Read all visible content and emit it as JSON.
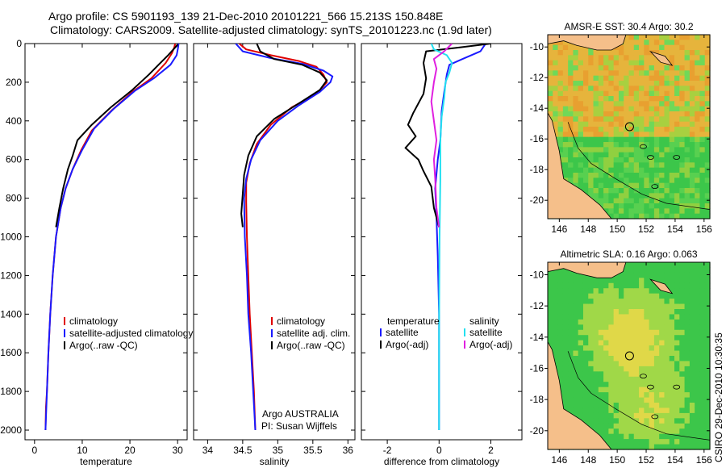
{
  "header": {
    "line1": "Argo profile: CS 5901193_139 21-Dec-2010 20101221_566 15.213S 150.848E",
    "line2": "Climatology: CARS2009. Satellite-adjusted climatology: synTS_20101223.nc (1.9d later)"
  },
  "colors": {
    "red": "#e00000",
    "blue": "#1a1aff",
    "black": "#000000",
    "cyan": "#22e0f0",
    "magenta": "#e020e0",
    "land": "#f5bf8a",
    "ocean_green": "#3cc64a",
    "ocean_yellow": "#e0d848",
    "ocean_orange": "#e8a030"
  },
  "chart_data": [
    {
      "type": "line",
      "id": "temperature",
      "xlabel": "temperature",
      "ylabel": "",
      "xlim": [
        -2,
        32
      ],
      "ylim": [
        2050,
        0
      ],
      "xticks": [
        0,
        10,
        20,
        30
      ],
      "yticks": [
        0,
        200,
        400,
        600,
        800,
        1000,
        1200,
        1400,
        1600,
        1800,
        2000
      ],
      "legend": [
        "climatology",
        "satellite-adjusted climatology",
        "Argo(..raw -QC)"
      ],
      "series": [
        {
          "name": "climatology",
          "color": "red",
          "points": [
            [
              29.5,
              0
            ],
            [
              29.3,
              20
            ],
            [
              28.8,
              50
            ],
            [
              27.5,
              100
            ],
            [
              24.5,
              180
            ],
            [
              20.5,
              250
            ],
            [
              16,
              350
            ],
            [
              12,
              450
            ],
            [
              9.8,
              550
            ],
            [
              8,
              650
            ],
            [
              6.5,
              750
            ],
            [
              5.5,
              850
            ],
            [
              4.5,
              1000
            ],
            [
              3.8,
              1200
            ],
            [
              3.3,
              1400
            ],
            [
              2.9,
              1600
            ],
            [
              2.6,
              1800
            ],
            [
              2.4,
              1880
            ],
            [
              2.3,
              2000
            ]
          ]
        },
        {
          "name": "satellite-adjusted climatology",
          "color": "blue",
          "points": [
            [
              30.2,
              0
            ],
            [
              30.1,
              20
            ],
            [
              29.8,
              60
            ],
            [
              28.5,
              110
            ],
            [
              25,
              180
            ],
            [
              21,
              245
            ],
            [
              16.5,
              340
            ],
            [
              12.5,
              440
            ],
            [
              10,
              550
            ],
            [
              8,
              650
            ],
            [
              6.5,
              750
            ],
            [
              5.5,
              850
            ],
            [
              4.5,
              1000
            ],
            [
              3.8,
              1200
            ],
            [
              3.3,
              1400
            ],
            [
              2.9,
              1600
            ],
            [
              2.6,
              1800
            ],
            [
              2.3,
              2000
            ]
          ]
        },
        {
          "name": "Argo(..raw -QC)",
          "color": "black",
          "points": [
            [
              30,
              5
            ],
            [
              29.5,
              20
            ],
            [
              28,
              60
            ],
            [
              26,
              110
            ],
            [
              24,
              160
            ],
            [
              20.5,
              240
            ],
            [
              16,
              330
            ],
            [
              12,
              420
            ],
            [
              9,
              500
            ],
            [
              8,
              580
            ],
            [
              7,
              650
            ],
            [
              6,
              750
            ],
            [
              5.2,
              850
            ],
            [
              4.5,
              950
            ]
          ]
        }
      ]
    },
    {
      "type": "line",
      "id": "salinity",
      "xlabel": "salinity",
      "xlim": [
        33.8,
        36.1
      ],
      "ylim": [
        2050,
        0
      ],
      "xticks": [
        34,
        34.5,
        35,
        35.5,
        36
      ],
      "legend": [
        "climatology",
        "satellite adj. clim.",
        "Argo(..raw -QC)"
      ],
      "annotation": [
        "Argo AUSTRALIA",
        "PI: Susan Wijffels"
      ],
      "series": [
        {
          "name": "climatology",
          "color": "red",
          "points": [
            [
              34.45,
              0
            ],
            [
              34.55,
              30
            ],
            [
              34.9,
              60
            ],
            [
              35.3,
              90
            ],
            [
              35.55,
              120
            ],
            [
              35.65,
              160
            ],
            [
              35.7,
              200
            ],
            [
              35.55,
              260
            ],
            [
              35.2,
              330
            ],
            [
              34.9,
              420
            ],
            [
              34.7,
              520
            ],
            [
              34.6,
              620
            ],
            [
              34.55,
              720
            ],
            [
              34.55,
              820
            ],
            [
              34.56,
              1000
            ],
            [
              34.58,
              1200
            ],
            [
              34.6,
              1400
            ],
            [
              34.63,
              1600
            ],
            [
              34.66,
              1800
            ],
            [
              34.68,
              2000
            ]
          ]
        },
        {
          "name": "satellite adj. clim.",
          "color": "blue",
          "points": [
            [
              34.4,
              0
            ],
            [
              34.5,
              40
            ],
            [
              34.9,
              75
            ],
            [
              35.35,
              105
            ],
            [
              35.65,
              140
            ],
            [
              35.78,
              170
            ],
            [
              35.75,
              200
            ],
            [
              35.6,
              250
            ],
            [
              35.3,
              320
            ],
            [
              35,
              400
            ],
            [
              34.75,
              500
            ],
            [
              34.62,
              600
            ],
            [
              34.55,
              700
            ],
            [
              34.52,
              800
            ],
            [
              34.53,
              1000
            ],
            [
              34.56,
              1200
            ],
            [
              34.58,
              1400
            ],
            [
              34.62,
              1600
            ],
            [
              34.65,
              1800
            ],
            [
              34.68,
              2000
            ]
          ]
        },
        {
          "name": "Argo(..raw -QC)",
          "color": "black",
          "points": [
            [
              34.7,
              0
            ],
            [
              34.75,
              40
            ],
            [
              34.95,
              80
            ],
            [
              35.35,
              110
            ],
            [
              35.6,
              150
            ],
            [
              35.7,
              190
            ],
            [
              35.6,
              240
            ],
            [
              35.3,
              310
            ],
            [
              34.95,
              390
            ],
            [
              34.7,
              480
            ],
            [
              34.58,
              580
            ],
            [
              34.52,
              680
            ],
            [
              34.5,
              780
            ],
            [
              34.48,
              880
            ],
            [
              34.5,
              950
            ]
          ]
        }
      ]
    },
    {
      "type": "line",
      "id": "difference",
      "xlabel": "difference from climatology",
      "xlim": [
        -3,
        3.2
      ],
      "ylim": [
        2050,
        0
      ],
      "xticks": [
        -2,
        0,
        2
      ],
      "legend_left_title": "temperature",
      "legend_right_title": "salinity",
      "legend_left": [
        "satellite",
        "Argo(-adj)"
      ],
      "legend_right": [
        "satellite",
        "Argo(-adj)"
      ],
      "series": [
        {
          "name": "temperature satellite",
          "color": "blue",
          "points": [
            [
              1.8,
              0
            ],
            [
              1.6,
              40
            ],
            [
              0.9,
              80
            ],
            [
              0.4,
              110
            ],
            [
              0.3,
              160
            ],
            [
              0.2,
              250
            ],
            [
              0.1,
              350
            ],
            [
              0.05,
              500
            ],
            [
              -0.05,
              600
            ],
            [
              -0.15,
              750
            ],
            [
              -0.1,
              900
            ],
            [
              -0.05,
              1100
            ],
            [
              0,
              1400
            ],
            [
              0,
              2000
            ]
          ]
        },
        {
          "name": "temperature Argo(-adj)",
          "color": "black",
          "points": [
            [
              2,
              0
            ],
            [
              0.8,
              20
            ],
            [
              -0.5,
              40
            ],
            [
              -0.6,
              100
            ],
            [
              -0.5,
              180
            ],
            [
              -0.6,
              260
            ],
            [
              -1,
              360
            ],
            [
              -1.2,
              420
            ],
            [
              -0.9,
              480
            ],
            [
              -1.3,
              540
            ],
            [
              -0.8,
              600
            ],
            [
              -0.6,
              660
            ],
            [
              -0.3,
              740
            ],
            [
              -0.2,
              850
            ],
            [
              0,
              950
            ]
          ]
        },
        {
          "name": "salinity satellite",
          "color": "cyan",
          "points": [
            [
              -0.3,
              0
            ],
            [
              -0.2,
              30
            ],
            [
              0.3,
              60
            ],
            [
              0.5,
              100
            ],
            [
              0.4,
              150
            ],
            [
              0.25,
              200
            ],
            [
              0.2,
              280
            ],
            [
              0.1,
              380
            ],
            [
              0.05,
              500
            ],
            [
              0.05,
              700
            ],
            [
              0.02,
              1000
            ],
            [
              0,
              1500
            ],
            [
              0,
              2000
            ]
          ]
        },
        {
          "name": "salinity Argo(-adj)",
          "color": "magenta",
          "points": [
            [
              0.5,
              0
            ],
            [
              0.2,
              40
            ],
            [
              -0.2,
              80
            ],
            [
              -0.1,
              130
            ],
            [
              -0.2,
              200
            ],
            [
              -0.3,
              300
            ],
            [
              -0.2,
              400
            ],
            [
              -0.1,
              500
            ],
            [
              -0.2,
              600
            ],
            [
              -0.15,
              700
            ],
            [
              -0.1,
              850
            ],
            [
              0,
              950
            ]
          ]
        }
      ]
    },
    {
      "type": "heatmap",
      "id": "sst-map",
      "title": "AMSR-E SST: 30.4  Argo: 30.2",
      "xlim": [
        145.2,
        156.4
      ],
      "ylim": [
        -21.2,
        -9.2
      ],
      "xticks": [
        146,
        148,
        150,
        152,
        154,
        156
      ],
      "yticks": [
        -10,
        -12,
        -14,
        -16,
        -18,
        -20
      ],
      "marker": [
        150.85,
        -15.2
      ]
    },
    {
      "type": "heatmap",
      "id": "sla-map",
      "title": "Altimetric SLA: 0.16  Argo: 0.063",
      "xlim": [
        145.2,
        156.4
      ],
      "ylim": [
        -21.2,
        -9.2
      ],
      "xticks": [
        146,
        148,
        150,
        152,
        154,
        156
      ],
      "yticks": [
        -10,
        -12,
        -14,
        -16,
        -18,
        -20
      ],
      "marker": [
        150.85,
        -15.2
      ]
    }
  ],
  "footer": {
    "stamp": "CSIRO 29-Dec-2010 10:30:35"
  }
}
